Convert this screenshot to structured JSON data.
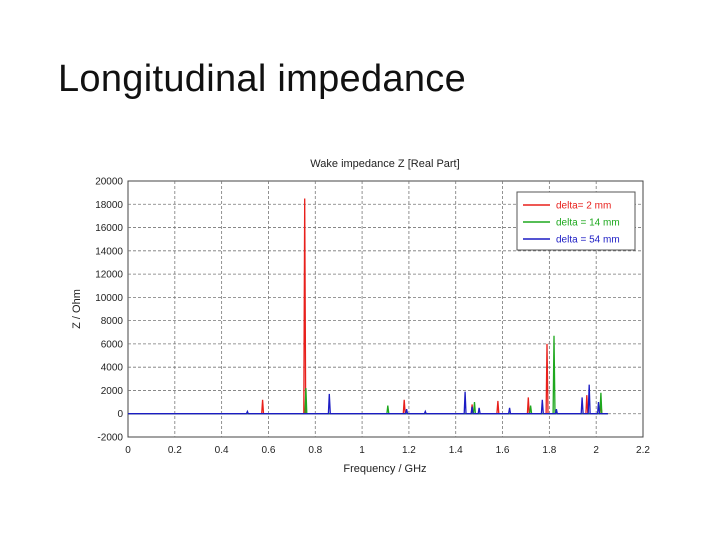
{
  "slide": {
    "title": "Longitudinal impedance"
  },
  "chart_data": {
    "type": "line",
    "title": "Wake impedance Z [Real Part]",
    "xlabel": "Frequency / GHz",
    "ylabel": "Z / Ohm",
    "xlim": [
      0,
      2.2
    ],
    "ylim": [
      -2000,
      20000
    ],
    "xticks": [
      "0",
      "0.2",
      "0.4",
      "0.6",
      "0.8",
      "1",
      "1.2",
      "1.4",
      "1.6",
      "1.8",
      "2",
      "2.2"
    ],
    "yticks": [
      "-2000",
      "0",
      "2000",
      "4000",
      "6000",
      "8000",
      "10000",
      "12000",
      "14000",
      "16000",
      "18000",
      "20000"
    ],
    "grid": true,
    "legend_position": "top-right",
    "series": [
      {
        "name": "delta= 2 mm",
        "color": "#e8201c",
        "peaks": [
          [
            0.575,
            1200
          ],
          [
            0.755,
            18500
          ],
          [
            1.18,
            1200
          ],
          [
            1.47,
            800
          ],
          [
            1.58,
            1100
          ],
          [
            1.71,
            1400
          ],
          [
            1.79,
            6000
          ],
          [
            1.96,
            1600
          ],
          [
            2.02,
            900
          ]
        ]
      },
      {
        "name": "delta = 14 mm",
        "color": "#1ea81e",
        "peaks": [
          [
            0.76,
            2200
          ],
          [
            1.11,
            700
          ],
          [
            1.48,
            1000
          ],
          [
            1.72,
            700
          ],
          [
            1.82,
            6700
          ],
          [
            2.02,
            1800
          ]
        ]
      },
      {
        "name": "delta = 54 mm",
        "color": "#1c1cc4",
        "peaks": [
          [
            0.51,
            200
          ],
          [
            0.86,
            1700
          ],
          [
            1.19,
            400
          ],
          [
            1.27,
            200
          ],
          [
            1.44,
            1900
          ],
          [
            1.47,
            600
          ],
          [
            1.5,
            500
          ],
          [
            1.63,
            500
          ],
          [
            1.77,
            1200
          ],
          [
            1.83,
            400
          ],
          [
            1.94,
            1400
          ],
          [
            1.97,
            2500
          ],
          [
            2.01,
            1000
          ]
        ]
      }
    ]
  }
}
